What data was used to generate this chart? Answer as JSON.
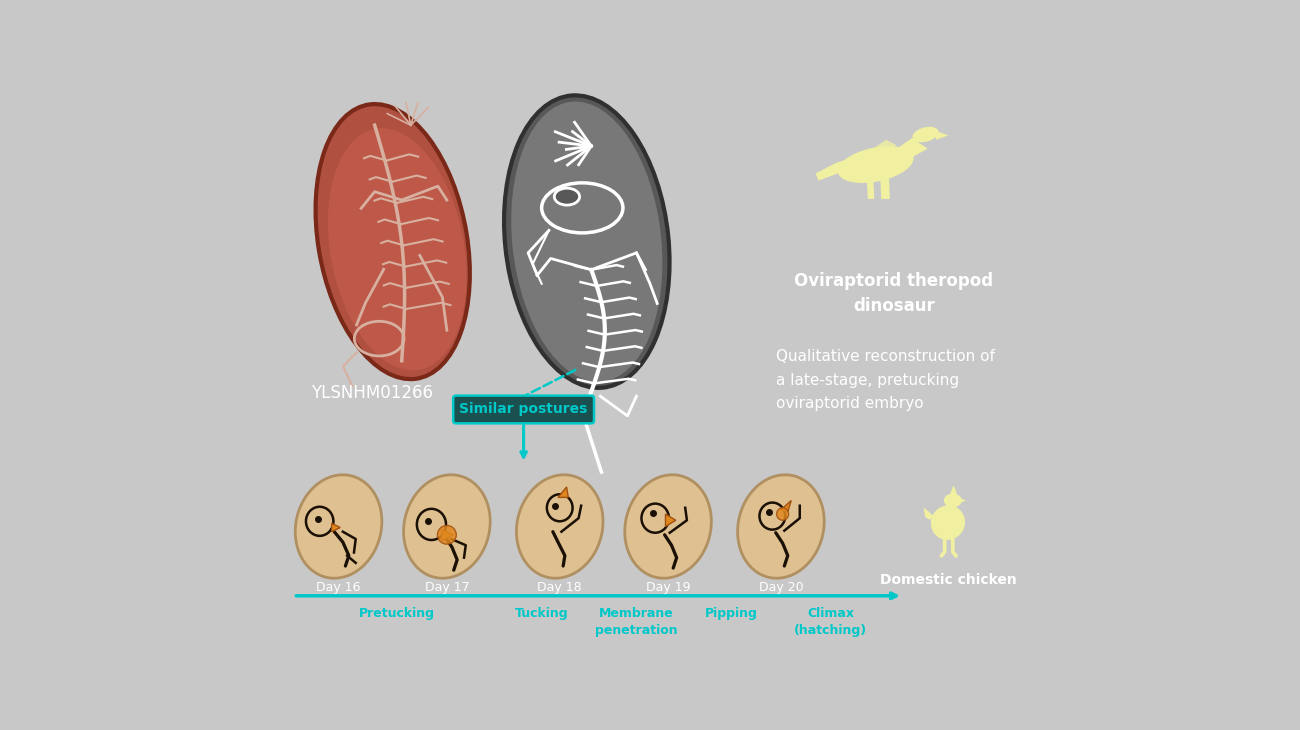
{
  "bg_color": "#0a0a0a",
  "border_color": "#d0d0d0",
  "text_color": "#ffffff",
  "cyan_color": "#00c8c8",
  "label_color": "#f0f0a0",
  "orange_color": "#e08820",
  "tan_color": "#dfc090",
  "gray_egg_color": "#808080",
  "fossil_color": "#c87060",
  "specimen_label": "YLSNHM01266",
  "dino_label_line1": "Oviraptorid theropod",
  "dino_label_line2": "dinosaur",
  "reconstruction_label": "Qualitative reconstruction of\na late-stage, pretucking\noviraptorid embryo",
  "similar_postures_label": "Similar postures",
  "day_labels": [
    "Day 16",
    "Day 17",
    "Day 18",
    "Day 19",
    "Day 20"
  ],
  "stage_labels": [
    "Pretucking",
    "Tucking",
    "Membrane\npenetration",
    "Pipping",
    "Climax\n(hatching)"
  ],
  "domestic_chicken_label": "Domestic chicken",
  "fig_width": 13.0,
  "fig_height": 7.3
}
